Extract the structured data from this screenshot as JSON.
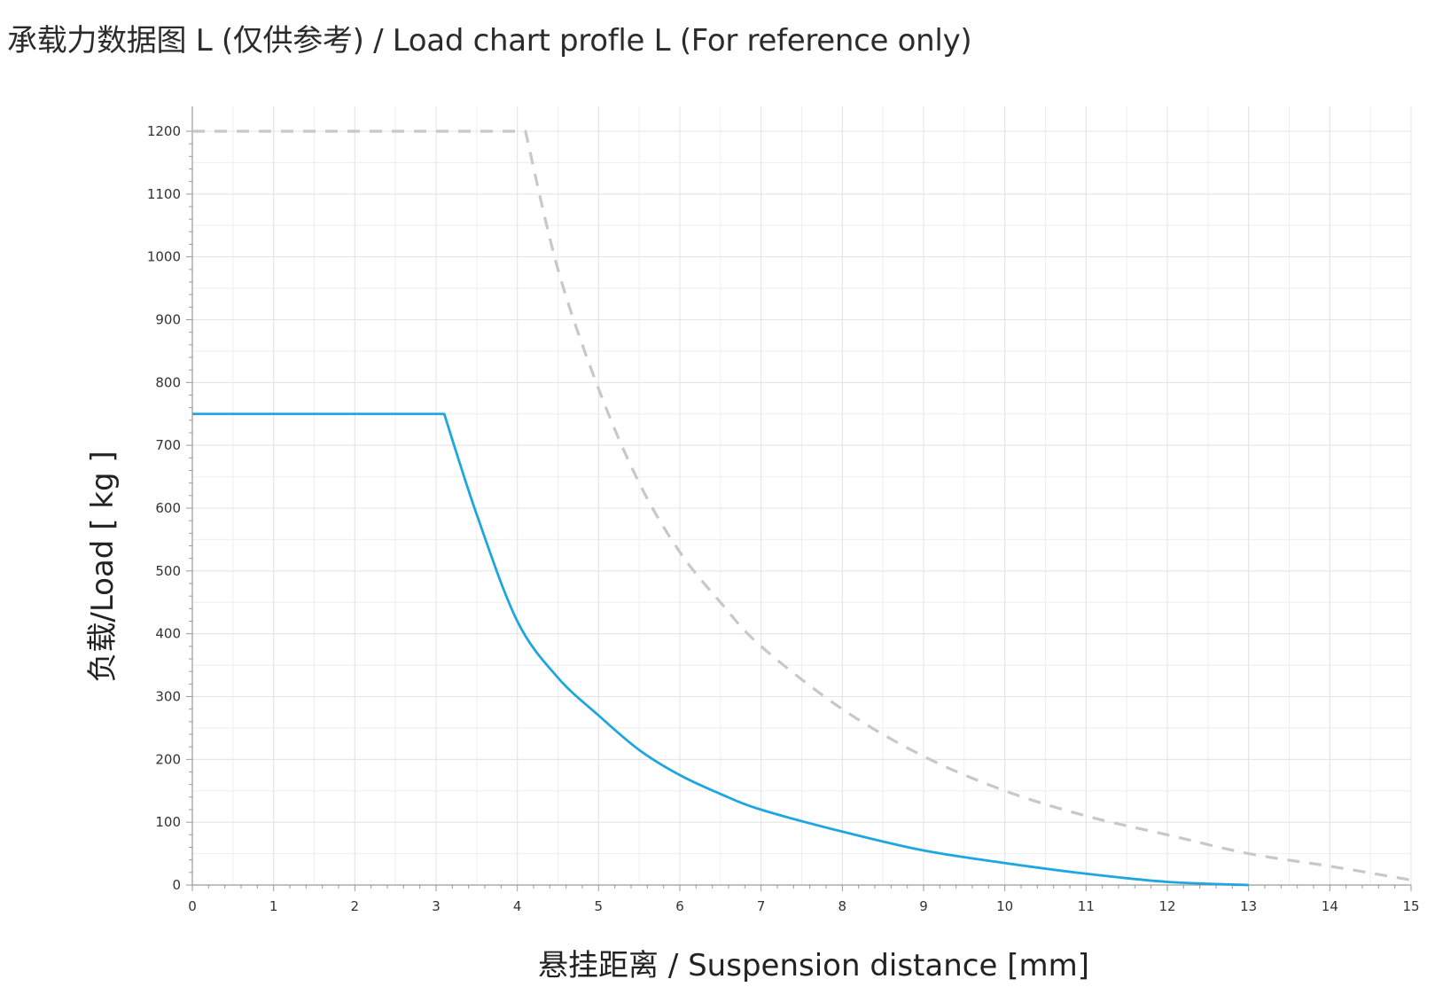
{
  "chart_data": {
    "type": "line",
    "title": "承载力数据图 L (仅供参考) / Load chart profle L (For reference only)",
    "xlabel": "悬挂距离 / Suspension distance [mm]",
    "ylabel": "负载/Load [ kg ]",
    "xlim": [
      0,
      15
    ],
    "ylim": [
      0,
      1200
    ],
    "xticks": [
      "0",
      "1",
      "2",
      "3",
      "4",
      "5",
      "6",
      "7",
      "8",
      "9",
      "10",
      "11",
      "12",
      "13",
      "14",
      "15"
    ],
    "yticks": [
      "0",
      "100",
      "200",
      "300",
      "400",
      "500",
      "600",
      "700",
      "800",
      "900",
      "1000",
      "1100",
      "1200"
    ],
    "grid": true,
    "legend": "none",
    "series": [
      {
        "style": "solid",
        "color": "#1ea6e0",
        "x": [
          0,
          3.1,
          3.5,
          4.0,
          4.5,
          5.0,
          5.5,
          6.0,
          6.5,
          7.0,
          8.0,
          9.0,
          10.0,
          11.0,
          12.0,
          13.0
        ],
        "y": [
          750,
          750,
          590,
          420,
          330,
          270,
          215,
          175,
          145,
          120,
          85,
          55,
          35,
          18,
          5,
          0
        ]
      },
      {
        "style": "dashed",
        "color": "#c8c8c8",
        "x": [
          0,
          4.1,
          4.5,
          5.0,
          5.5,
          6.0,
          6.5,
          7.0,
          8.0,
          9.0,
          10.0,
          11.0,
          12.0,
          13.0,
          14.0,
          15.0
        ],
        "y": [
          1200,
          1200,
          980,
          790,
          640,
          530,
          450,
          380,
          280,
          205,
          150,
          110,
          80,
          50,
          30,
          8
        ]
      }
    ]
  }
}
